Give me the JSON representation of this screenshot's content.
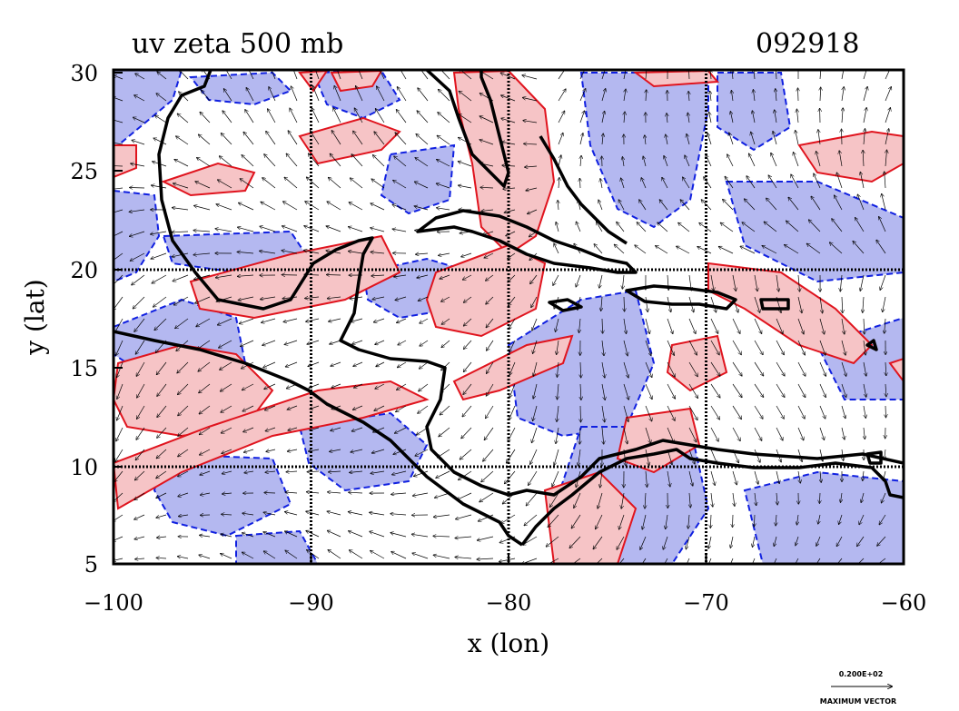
{
  "chart_data": {
    "type": "contour",
    "title": "uv zeta 500 mb",
    "date_label": "092918",
    "xlabel": "x (lon)",
    "ylabel": "y (lat)",
    "xlim": [
      -100,
      -60
    ],
    "ylim": [
      5,
      30
    ],
    "x_ticks": [
      -100,
      -90,
      -80,
      -70,
      -60
    ],
    "x_tick_labels": [
      "−100",
      "−90",
      "−80",
      "−70",
      "−60"
    ],
    "y_ticks": [
      5,
      10,
      15,
      20,
      25,
      30
    ],
    "y_tick_labels": [
      "5",
      "10",
      "15",
      "20",
      "25",
      "30"
    ],
    "grid": true,
    "grid_lines_lon": [
      -90,
      -80,
      -70
    ],
    "grid_lines_lat": [
      10,
      20
    ],
    "positive_contour_color": "#e0141e",
    "positive_fill_color": "#f6c4c6",
    "negative_contour_color": "#1020e0",
    "negative_fill_color": "#b4b8f0",
    "coastline_color": "#000000",
    "vector_legend": {
      "magnitude": "0.200E+02",
      "caption": "MAXIMUM VECTOR"
    }
  }
}
